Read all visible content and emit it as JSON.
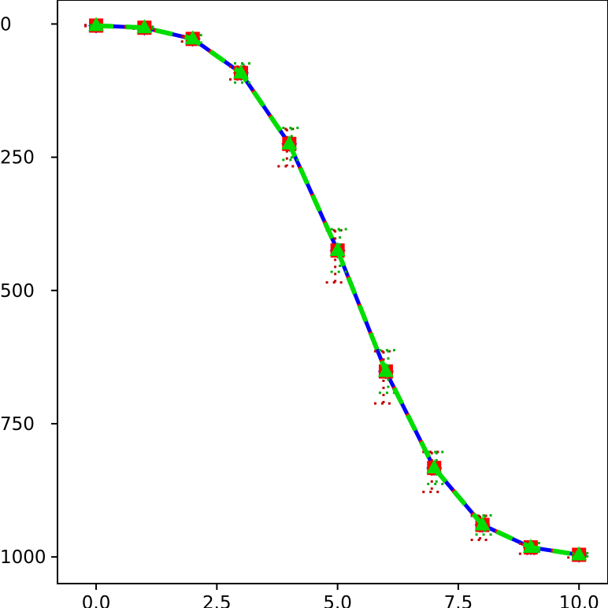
{
  "chart_data": {
    "type": "line",
    "title": "",
    "xlabel": "",
    "ylabel": "",
    "xlim": [
      -0.8,
      10.6
    ],
    "ylim": [
      1050,
      -45
    ],
    "y_inverted": true,
    "grid": false,
    "x_ticks": [
      0.0,
      2.5,
      5.0,
      7.5,
      10.0
    ],
    "x_tick_labels": [
      "0.0",
      "2.5",
      "5.0",
      "7.5",
      "10.0"
    ],
    "y_ticks": [
      0,
      250,
      500,
      750,
      1000
    ],
    "y_tick_labels": [
      "0",
      "250",
      "500",
      "750",
      "1000"
    ],
    "series": [
      {
        "color": "#0000ff",
        "marker": "diamond",
        "line_style": "solid",
        "x": [
          0,
          1,
          2,
          3,
          4,
          5,
          6,
          7,
          8,
          9,
          10
        ],
        "y": [
          3,
          7,
          28,
          92,
          225,
          425,
          652,
          833,
          940,
          982,
          996
        ]
      },
      {
        "color": "#ff0000",
        "marker": "square",
        "line_style": "dashed",
        "x": [
          0,
          1,
          2,
          3,
          4,
          5,
          6,
          7,
          8,
          9,
          10
        ],
        "y": [
          3,
          7,
          28,
          92,
          225,
          425,
          652,
          833,
          940,
          982,
          996
        ],
        "error_low": [
          1,
          2,
          5,
          12,
          28,
          38,
          38,
          30,
          17,
          7,
          3
        ],
        "error_high": [
          1,
          2,
          5,
          12,
          42,
          60,
          60,
          45,
          28,
          12,
          5
        ]
      },
      {
        "color": "#00dd00",
        "marker": "triangle",
        "line_style": "dashed",
        "x": [
          0,
          1,
          2,
          3,
          4,
          5,
          6,
          7,
          8,
          9,
          10
        ],
        "y": [
          3,
          7,
          28,
          92,
          225,
          425,
          652,
          833,
          940,
          982,
          996
        ],
        "error_low": [
          1,
          2,
          7,
          18,
          30,
          40,
          40,
          30,
          18,
          8,
          3
        ],
        "error_high": [
          1,
          2,
          7,
          18,
          30,
          40,
          40,
          30,
          18,
          8,
          3
        ]
      }
    ]
  }
}
